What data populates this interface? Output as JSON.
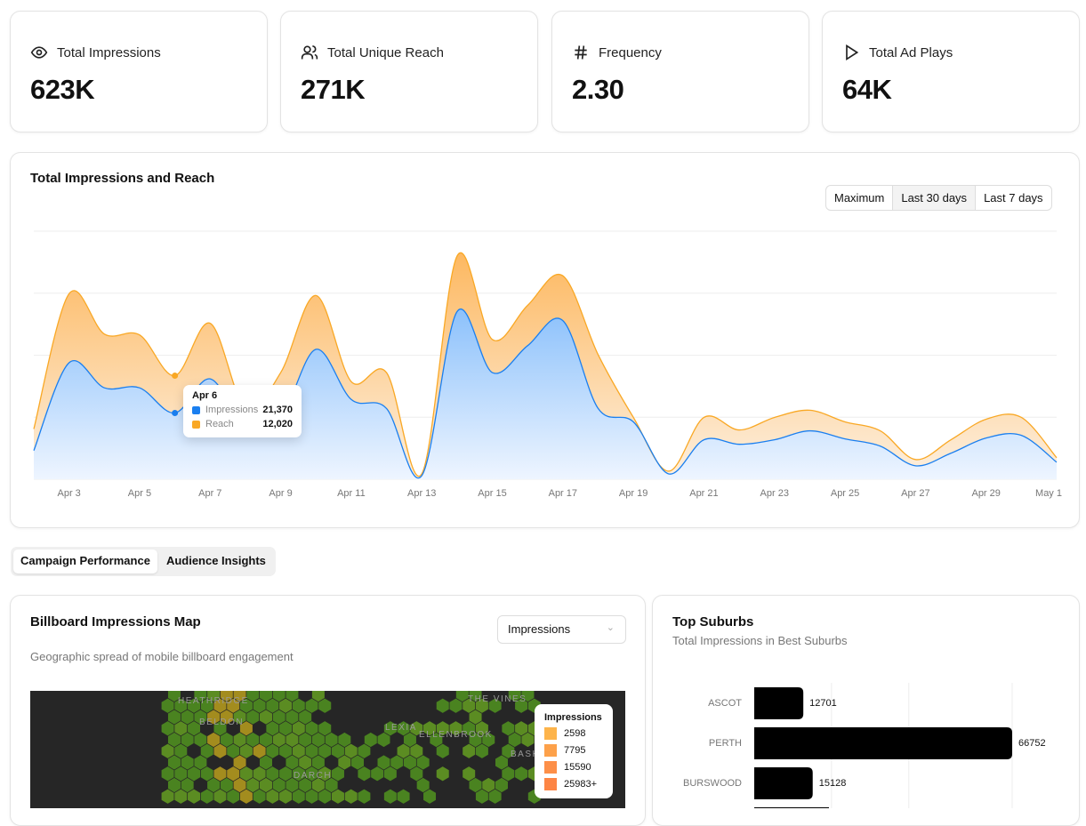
{
  "kpis": [
    {
      "label": "Total Impressions",
      "value": "623K",
      "icon": "eye-icon"
    },
    {
      "label": "Total Unique Reach",
      "value": "271K",
      "icon": "users-icon"
    },
    {
      "label": "Frequency",
      "value": "2.30",
      "icon": "hash-icon"
    },
    {
      "label": "Total Ad Plays",
      "value": "64K",
      "icon": "play-icon"
    }
  ],
  "impressions_chart": {
    "title": "Total Impressions and Reach",
    "ranges": [
      "Maximum",
      "Last 30 days",
      "Last 7 days"
    ],
    "selected_range": "Last 30 days",
    "tooltip": {
      "date": "Apr 6",
      "rows": [
        {
          "label": "Impressions",
          "value": "21,370"
        },
        {
          "label": "Reach",
          "value": "12,020"
        }
      ]
    }
  },
  "chart_data": {
    "type": "area",
    "stacked": true,
    "x": [
      "Apr 2",
      "Apr 3",
      "Apr 4",
      "Apr 5",
      "Apr 6",
      "Apr 7",
      "Apr 8",
      "Apr 9",
      "Apr 10",
      "Apr 11",
      "Apr 12",
      "Apr 13",
      "Apr 14",
      "Apr 15",
      "Apr 16",
      "Apr 17",
      "Apr 18",
      "Apr 19",
      "Apr 20",
      "Apr 21",
      "Apr 22",
      "Apr 23",
      "Apr 24",
      "Apr 25",
      "Apr 26",
      "Apr 27",
      "Apr 28",
      "Apr 29",
      "Apr 30",
      "May 1"
    ],
    "x_tick_labels": [
      "Apr 3",
      "Apr 5",
      "Apr 7",
      "Apr 9",
      "Apr 11",
      "Apr 13",
      "Apr 15",
      "Apr 17",
      "Apr 19",
      "Apr 21",
      "Apr 23",
      "Apr 25",
      "Apr 27",
      "Apr 29",
      "May 1"
    ],
    "ylim": [
      0,
      80000
    ],
    "grid": true,
    "series": [
      {
        "name": "Impressions",
        "color": "#1a7ff0",
        "values": [
          9250,
          37570,
          29480,
          29480,
          21370,
          32370,
          17050,
          19940,
          41900,
          25720,
          22830,
          1160,
          54040,
          34390,
          43060,
          51150,
          22830,
          18500,
          1730,
          12720,
          11270,
          12720,
          15610,
          13010,
          10690,
          4340,
          8380,
          13290,
          14160,
          5490
        ]
      },
      {
        "name": "Reach",
        "color": "#f9a825",
        "values": [
          6950,
          22250,
          17340,
          17050,
          12020,
          17920,
          5780,
          14450,
          17350,
          5780,
          11560,
          570,
          17920,
          10690,
          13010,
          14450,
          17340,
          1440,
          870,
          7220,
          4620,
          7220,
          6640,
          5490,
          4920,
          2020,
          4340,
          6070,
          5780,
          1450
        ]
      }
    ]
  },
  "tabs": [
    "Campaign Performance",
    "Audience Insights"
  ],
  "map": {
    "title": "Billboard Impressions Map",
    "subtitle": "Geographic spread of mobile billboard engagement",
    "metric_select": "Impressions",
    "place_labels": [
      "HEATHRIDGE",
      "BELDON",
      "LEXIA",
      "ELLENBROOK",
      "THE VINES",
      "DARCH",
      "BASK"
    ],
    "legend": {
      "title": "Impressions",
      "items": [
        {
          "label": "2598",
          "color": "#fdb44b"
        },
        {
          "label": "7795",
          "color": "#fda14a"
        },
        {
          "label": "15590",
          "color": "#fd8f48"
        },
        {
          "label": "25983+",
          "color": "#fd8545"
        }
      ]
    }
  },
  "suburbs": {
    "title": "Top Suburbs",
    "subtitle": "Total Impressions in Best Suburbs",
    "bars": [
      {
        "label": "ASCOT",
        "value": 12701
      },
      {
        "label": "PERTH",
        "value": 66752
      },
      {
        "label": "BURSWOOD",
        "value": 15128
      }
    ]
  }
}
